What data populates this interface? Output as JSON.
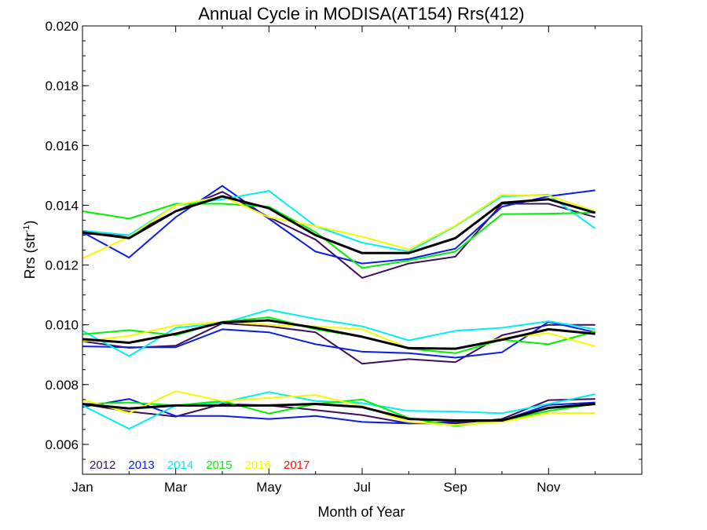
{
  "chart_data": {
    "type": "line",
    "title": "Annual Cycle in MODISA(AT154) Rrs(412)",
    "xlabel": "Month of Year",
    "ylabel_main": "Rrs (str",
    "ylabel_sup": "-1",
    "ylabel_close": ")",
    "xlim": [
      1,
      13
    ],
    "ylim": [
      0.005,
      0.02
    ],
    "x_ticks": [
      {
        "value": 1,
        "label": "Jan"
      },
      {
        "value": 3,
        "label": "Mar"
      },
      {
        "value": 5,
        "label": "May"
      },
      {
        "value": 7,
        "label": "Jul"
      },
      {
        "value": 9,
        "label": "Sep"
      },
      {
        "value": 11,
        "label": "Nov"
      }
    ],
    "y_ticks": [
      {
        "value": 0.006,
        "label": "0.006"
      },
      {
        "value": 0.008,
        "label": "0.008"
      },
      {
        "value": 0.01,
        "label": "0.010"
      },
      {
        "value": 0.012,
        "label": "0.012"
      },
      {
        "value": 0.014,
        "label": "0.014"
      },
      {
        "value": 0.016,
        "label": "0.016"
      },
      {
        "value": 0.018,
        "label": "0.018"
      },
      {
        "value": 0.02,
        "label": "0.020"
      }
    ],
    "x": [
      1,
      2,
      3,
      4,
      5,
      6,
      7,
      8,
      9,
      10,
      11,
      12
    ],
    "series": [
      {
        "name": "2012",
        "color": "#3d0f5c",
        "width": 2,
        "groups": [
          [
            0.01305,
            0.013,
            0.0138,
            0.01445,
            0.0136,
            0.01285,
            0.01157,
            0.01205,
            0.01228,
            0.01405,
            0.01405,
            0.0136
          ],
          [
            0.00945,
            0.00923,
            0.0093,
            0.01005,
            0.00995,
            0.00975,
            0.0087,
            0.00885,
            0.00875,
            0.00965,
            0.01,
            0.01
          ],
          [
            0.00735,
            0.0071,
            0.00693,
            0.00735,
            0.0073,
            0.00715,
            0.00698,
            0.0067,
            0.0067,
            0.00685,
            0.00748,
            0.00752
          ]
        ]
      },
      {
        "name": "2013",
        "color": "#0a1ee6",
        "width": 2,
        "groups": [
          [
            0.0131,
            0.01225,
            0.0136,
            0.01465,
            0.01355,
            0.01245,
            0.01205,
            0.0122,
            0.01255,
            0.01395,
            0.0143,
            0.0145
          ],
          [
            0.00928,
            0.00925,
            0.00925,
            0.00985,
            0.00975,
            0.00935,
            0.0091,
            0.00905,
            0.0089,
            0.00908,
            0.0101,
            0.00975
          ],
          [
            0.00725,
            0.00752,
            0.00695,
            0.00695,
            0.00685,
            0.00695,
            0.00675,
            0.0067,
            0.00675,
            0.0068,
            0.00732,
            0.0074
          ]
        ]
      },
      {
        "name": "2014",
        "color": "#00f0f0",
        "width": 2,
        "groups": [
          [
            0.01315,
            0.013,
            0.014,
            0.0142,
            0.01448,
            0.0133,
            0.01275,
            0.01245,
            0.0133,
            0.0143,
            0.01435,
            0.01322
          ],
          [
            0.0098,
            0.00895,
            0.0099,
            0.01005,
            0.0105,
            0.0102,
            0.00995,
            0.00948,
            0.0098,
            0.0099,
            0.01012,
            0.00985
          ],
          [
            0.0073,
            0.00652,
            0.0073,
            0.0074,
            0.00775,
            0.00745,
            0.00738,
            0.00712,
            0.0071,
            0.00704,
            0.00735,
            0.00768
          ]
        ]
      },
      {
        "name": "2015",
        "color": "#00f000",
        "width": 2,
        "groups": [
          [
            0.0138,
            0.01355,
            0.01405,
            0.01405,
            0.01395,
            0.0131,
            0.0119,
            0.01215,
            0.01245,
            0.0137,
            0.01372,
            0.01375
          ],
          [
            0.00968,
            0.00982,
            0.00965,
            0.0101,
            0.01025,
            0.00985,
            0.0096,
            0.0092,
            0.00905,
            0.0095,
            0.00935,
            0.00978
          ],
          [
            0.00735,
            0.0074,
            0.0073,
            0.00745,
            0.00703,
            0.00735,
            0.0075,
            0.00688,
            0.00662,
            0.00678,
            0.00712,
            0.00735
          ]
        ]
      },
      {
        "name": "2016",
        "color": "#f8f800",
        "width": 2,
        "groups": [
          [
            0.01222,
            0.01295,
            0.014,
            0.0143,
            0.0136,
            0.0133,
            0.01295,
            0.01252,
            0.01332,
            0.01435,
            0.01432,
            0.0138
          ],
          [
            0.00945,
            0.00963,
            0.00998,
            0.0101,
            0.01,
            0.00995,
            0.00985,
            0.00922,
            0.00918,
            0.00955,
            0.00972,
            0.00928
          ],
          [
            0.0075,
            0.00705,
            0.00778,
            0.00745,
            0.00755,
            0.00765,
            0.00728,
            0.00675,
            0.00665,
            0.00675,
            0.00705,
            0.00705
          ]
        ]
      },
      {
        "name": "2017",
        "color": "#f01414",
        "width": 2,
        "groups": []
      },
      {
        "name": "",
        "color": "#000000",
        "width": 3,
        "groups": [
          [
            0.0131,
            0.0129,
            0.0138,
            0.0143,
            0.0139,
            0.013,
            0.0124,
            0.0124,
            0.0129,
            0.01408,
            0.0142,
            0.01375
          ],
          [
            0.00952,
            0.0094,
            0.0097,
            0.01008,
            0.01015,
            0.0099,
            0.0096,
            0.00922,
            0.0092,
            0.0095,
            0.00985,
            0.0097
          ],
          [
            0.00735,
            0.0072,
            0.0073,
            0.0073,
            0.0073,
            0.00735,
            0.00725,
            0.00685,
            0.0068,
            0.0068,
            0.00722,
            0.00735
          ]
        ]
      }
    ],
    "legend": [
      "2012",
      "2013",
      "2014",
      "2015",
      "2016",
      "2017"
    ],
    "legend_position": "bottom-left",
    "grid": false
  }
}
